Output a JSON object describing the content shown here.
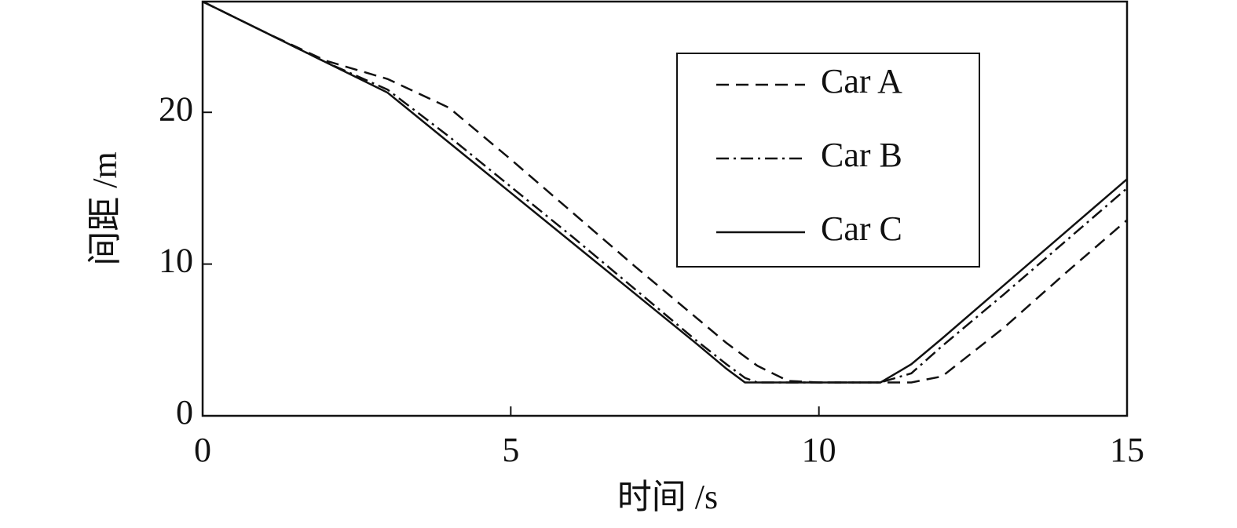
{
  "chart_data": {
    "type": "line",
    "x_label": "时间 /s",
    "y_label": "间距 /m",
    "x": [
      0,
      1,
      2,
      3,
      4,
      5,
      6,
      7,
      8,
      8.5,
      8.8,
      9,
      9.5,
      10,
      11,
      11.5,
      12,
      13,
      14,
      15
    ],
    "series": [
      {
        "name": "Car A",
        "color": "#111111",
        "dash": "16,9",
        "values": [
          27.3,
          25.3,
          23.4,
          22.2,
          20.3,
          16.9,
          13.4,
          9.9,
          6.5,
          4.8,
          3.9,
          3.3,
          2.3,
          2.2,
          2.2,
          2.2,
          2.6,
          5.8,
          9.4,
          12.9
        ]
      },
      {
        "name": "Car B",
        "color": "#111111",
        "dash": "16,6,3,6",
        "values": [
          27.3,
          25.3,
          23.3,
          21.5,
          18.4,
          15.1,
          11.8,
          8.4,
          5.0,
          3.4,
          2.5,
          2.2,
          2.2,
          2.2,
          2.2,
          2.8,
          4.6,
          8.0,
          11.5,
          15.0
        ]
      },
      {
        "name": "Car C",
        "color": "#111111",
        "dash": "none",
        "values": [
          27.3,
          25.3,
          23.3,
          21.3,
          18.0,
          14.7,
          11.4,
          8.1,
          4.8,
          3.1,
          2.2,
          2.2,
          2.2,
          2.2,
          2.2,
          3.4,
          5.1,
          8.6,
          12.1,
          15.6
        ]
      }
    ],
    "xlim": [
      0,
      15
    ],
    "xticks": [
      0,
      5,
      10,
      15
    ],
    "ylim": [
      0,
      27.3
    ],
    "yticks": [
      0,
      10,
      20
    ]
  }
}
